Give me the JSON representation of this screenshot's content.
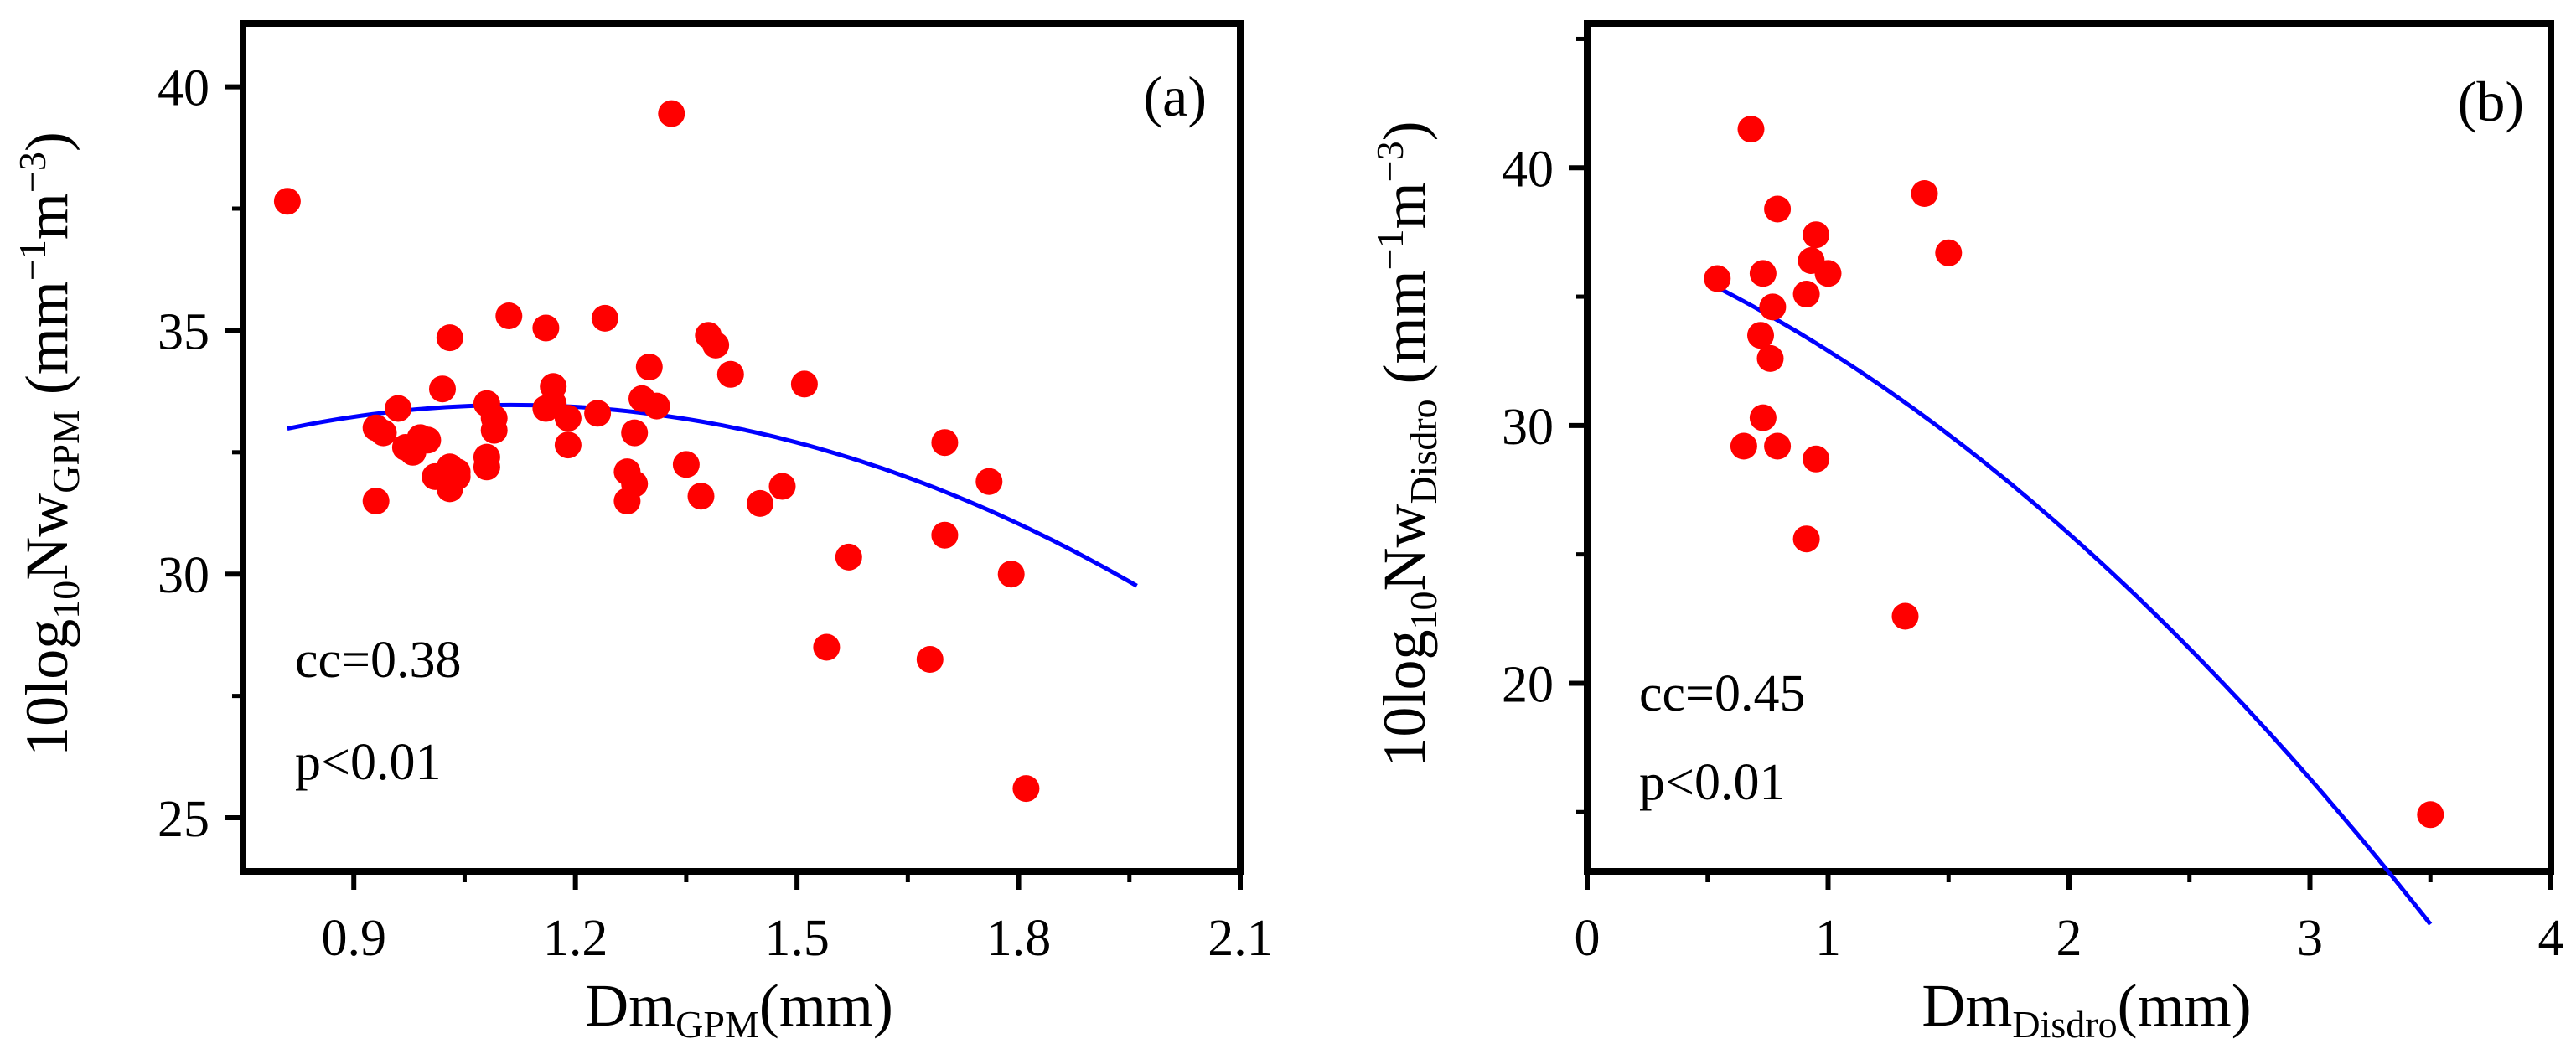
{
  "chart_data": [
    {
      "type": "scatter",
      "panel_label": "(a)",
      "xlabel": {
        "base": "Dm",
        "sub": "GPM",
        "tail": "(mm)"
      },
      "ylabel": {
        "base": "10log",
        "sub1": "10",
        "mid": "Nw",
        "sub2": "GPM",
        "unit_open": " (mm",
        "sup1": "−1",
        "unit_mid": "m",
        "sup2": "−3",
        "unit_close": ")"
      },
      "xlim": [
        0.75,
        2.1
      ],
      "ylim": [
        23.9,
        41.3
      ],
      "xticks": [
        0.9,
        1.2,
        1.5,
        1.8,
        2.1
      ],
      "xtick_labels": [
        "0.9",
        "1.2",
        "1.5",
        "1.8",
        "2.1"
      ],
      "yticks": [
        25,
        30,
        35,
        40
      ],
      "ytick_labels": [
        "25",
        "30",
        "35",
        "40"
      ],
      "stats": {
        "cc": "cc=0.38",
        "p": "p<0.01"
      },
      "point_color": "#ff0000",
      "fit_color": "#0000ff",
      "points": [
        [
          0.81,
          37.65
        ],
        [
          1.33,
          39.45
        ],
        [
          0.93,
          31.5
        ],
        [
          0.93,
          33.0
        ],
        [
          0.94,
          32.9
        ],
        [
          0.96,
          33.4
        ],
        [
          0.97,
          32.6
        ],
        [
          0.98,
          32.5
        ],
        [
          0.99,
          32.8
        ],
        [
          1.0,
          32.75
        ],
        [
          1.01,
          32.0
        ],
        [
          1.02,
          33.8
        ],
        [
          1.03,
          34.85
        ],
        [
          1.03,
          32.2
        ],
        [
          1.03,
          31.9
        ],
        [
          1.03,
          31.75
        ],
        [
          1.04,
          32.0
        ],
        [
          1.04,
          32.1
        ],
        [
          1.08,
          33.5
        ],
        [
          1.08,
          32.4
        ],
        [
          1.08,
          32.2
        ],
        [
          1.09,
          33.2
        ],
        [
          1.09,
          32.95
        ],
        [
          1.11,
          35.3
        ],
        [
          1.16,
          35.05
        ],
        [
          1.16,
          33.4
        ],
        [
          1.17,
          33.85
        ],
        [
          1.17,
          33.5
        ],
        [
          1.19,
          33.2
        ],
        [
          1.19,
          32.65
        ],
        [
          1.23,
          33.3
        ],
        [
          1.24,
          35.25
        ],
        [
          1.27,
          32.1
        ],
        [
          1.27,
          31.5
        ],
        [
          1.28,
          32.9
        ],
        [
          1.28,
          31.85
        ],
        [
          1.29,
          33.6
        ],
        [
          1.3,
          34.25
        ],
        [
          1.31,
          33.45
        ],
        [
          1.35,
          32.25
        ],
        [
          1.37,
          31.6
        ],
        [
          1.38,
          34.9
        ],
        [
          1.39,
          34.7
        ],
        [
          1.41,
          34.1
        ],
        [
          1.45,
          31.45
        ],
        [
          1.48,
          31.8
        ],
        [
          1.51,
          33.9
        ],
        [
          1.54,
          28.5
        ],
        [
          1.57,
          30.35
        ],
        [
          1.68,
          28.25
        ],
        [
          1.7,
          32.7
        ],
        [
          1.7,
          30.8
        ],
        [
          1.76,
          31.9
        ],
        [
          1.79,
          30.0
        ],
        [
          1.81,
          25.6
        ]
      ],
      "fit": {
        "x_range": [
          0.81,
          1.96
        ],
        "coeffs": [
          -5.2,
          11.6,
          27.0
        ]
      }
    },
    {
      "type": "scatter",
      "panel_label": "(b)",
      "xlabel": {
        "base": "Dm",
        "sub": "Disdro",
        "tail": "(mm)"
      },
      "ylabel": {
        "base": "10log",
        "sub1": "10",
        "mid": "Nw",
        "sub2": "Disdro",
        "unit_open": " (mm",
        "sup1": "−1",
        "unit_mid": "m",
        "sup2": "−3",
        "unit_close": ")"
      },
      "xlim": [
        0,
        4
      ],
      "ylim": [
        12.7,
        45.6
      ],
      "xticks": [
        0,
        1,
        2,
        3,
        4
      ],
      "xtick_labels": [
        "0",
        "1",
        "2",
        "3",
        "4"
      ],
      "yticks": [
        20,
        30,
        40
      ],
      "ytick_labels": [
        "20",
        "30",
        "40"
      ],
      "stats": {
        "cc": "cc=0.45",
        "p": "p<0.01"
      },
      "point_color": "#ff0000",
      "fit_color": "#0000ff",
      "points": [
        [
          0.68,
          41.5
        ],
        [
          1.4,
          39.0
        ],
        [
          0.79,
          38.4
        ],
        [
          0.95,
          37.4
        ],
        [
          1.5,
          36.7
        ],
        [
          0.93,
          36.4
        ],
        [
          0.54,
          35.7
        ],
        [
          0.73,
          35.9
        ],
        [
          1.0,
          35.9
        ],
        [
          0.91,
          35.1
        ],
        [
          0.77,
          34.6
        ],
        [
          0.72,
          33.5
        ],
        [
          0.76,
          32.6
        ],
        [
          0.73,
          30.3
        ],
        [
          0.65,
          29.2
        ],
        [
          0.79,
          29.2
        ],
        [
          0.95,
          28.7
        ],
        [
          0.91,
          25.6
        ],
        [
          1.32,
          22.6
        ],
        [
          3.5,
          14.9
        ]
      ],
      "fit": {
        "x_range": [
          0.54,
          3.5
        ],
        "coeffs": [
          -1.2,
          -3.5,
          37.6
        ]
      }
    }
  ]
}
